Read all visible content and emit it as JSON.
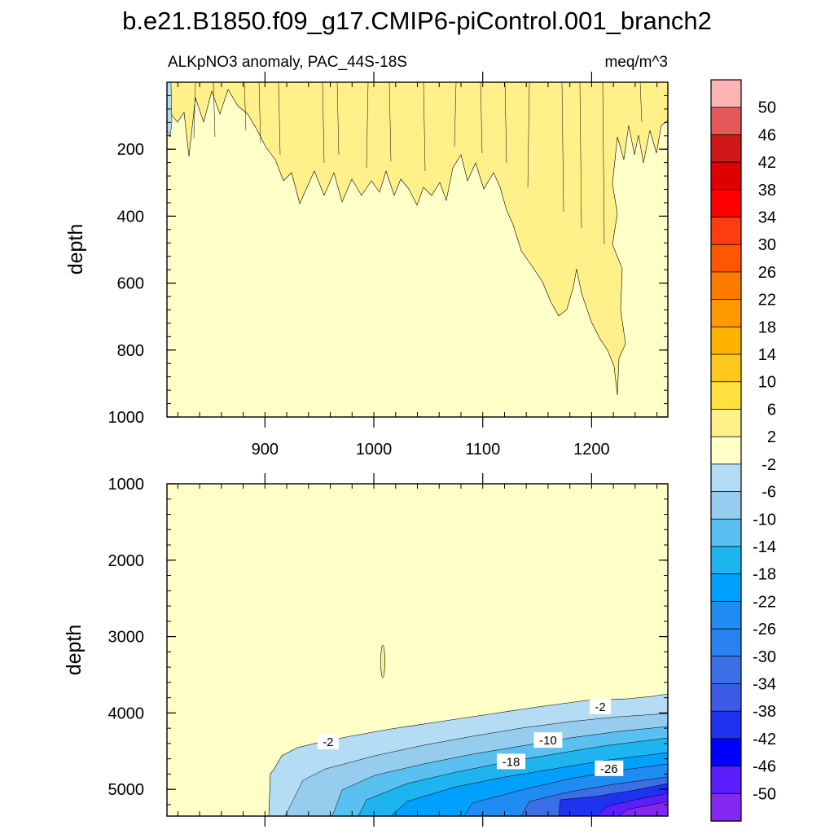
{
  "chart_data": {
    "type": "contour",
    "title": "b.e21.B1850.f09_g17.CMIP6-piControl.001_branch2",
    "left_string": "ALKpNO3 anomaly, PAC_44S-18S",
    "right_string": "meq/m^3",
    "xlim": [
      810,
      1270
    ],
    "x_ticks": [
      900,
      1000,
      1100,
      1200
    ],
    "colorbar": {
      "labels": [
        "50",
        "46",
        "42",
        "38",
        "34",
        "30",
        "26",
        "22",
        "18",
        "14",
        "10",
        "6",
        "2",
        "-2",
        "-6",
        "-10",
        "-14",
        "-18",
        "-22",
        "-26",
        "-30",
        "-34",
        "-38",
        "-42",
        "-46",
        "-50"
      ],
      "colors": [
        "#fcb4b4",
        "#e35858",
        "#d01818",
        "#e10000",
        "#ff0000",
        "#ff3b10",
        "#ff5700",
        "#ff7b00",
        "#ff9900",
        "#ffb300",
        "#ffc81e",
        "#ffe040",
        "#fff08a",
        "#ffffc8",
        "#b4dcf4",
        "#96ccee",
        "#5ac0f2",
        "#1eb4f0",
        "#00a0ff",
        "#1e8cf0",
        "#2882f0",
        "#3c6ee6",
        "#3c5ae6",
        "#1e32f0",
        "#0000ff",
        "#5a1eff",
        "#8228f0"
      ]
    },
    "panels": [
      {
        "name": "upper",
        "ylabel": "depth",
        "ylim": [
          1000,
          0
        ],
        "y_ticks": [
          200,
          400,
          600,
          800,
          1000
        ],
        "features": [
          {
            "value_range": "2 to 6",
            "desc": "near-surface striations to about 350 m, reaching about 930 m near year 1220"
          }
        ]
      },
      {
        "name": "lower",
        "ylabel": "depth",
        "ylim": [
          5350,
          1000
        ],
        "y_ticks": [
          1000,
          2000,
          3000,
          4000,
          5000
        ],
        "contour_labels": [
          {
            "text": "-2",
            "x": 1208,
            "y": 3920
          },
          {
            "text": "-2",
            "x": 958,
            "y": 4380
          },
          {
            "text": "-10",
            "x": 1160,
            "y": 4360
          },
          {
            "text": "-18",
            "x": 1126,
            "y": 4640
          },
          {
            "text": "-26",
            "x": 1216,
            "y": 4730
          }
        ]
      }
    ]
  }
}
